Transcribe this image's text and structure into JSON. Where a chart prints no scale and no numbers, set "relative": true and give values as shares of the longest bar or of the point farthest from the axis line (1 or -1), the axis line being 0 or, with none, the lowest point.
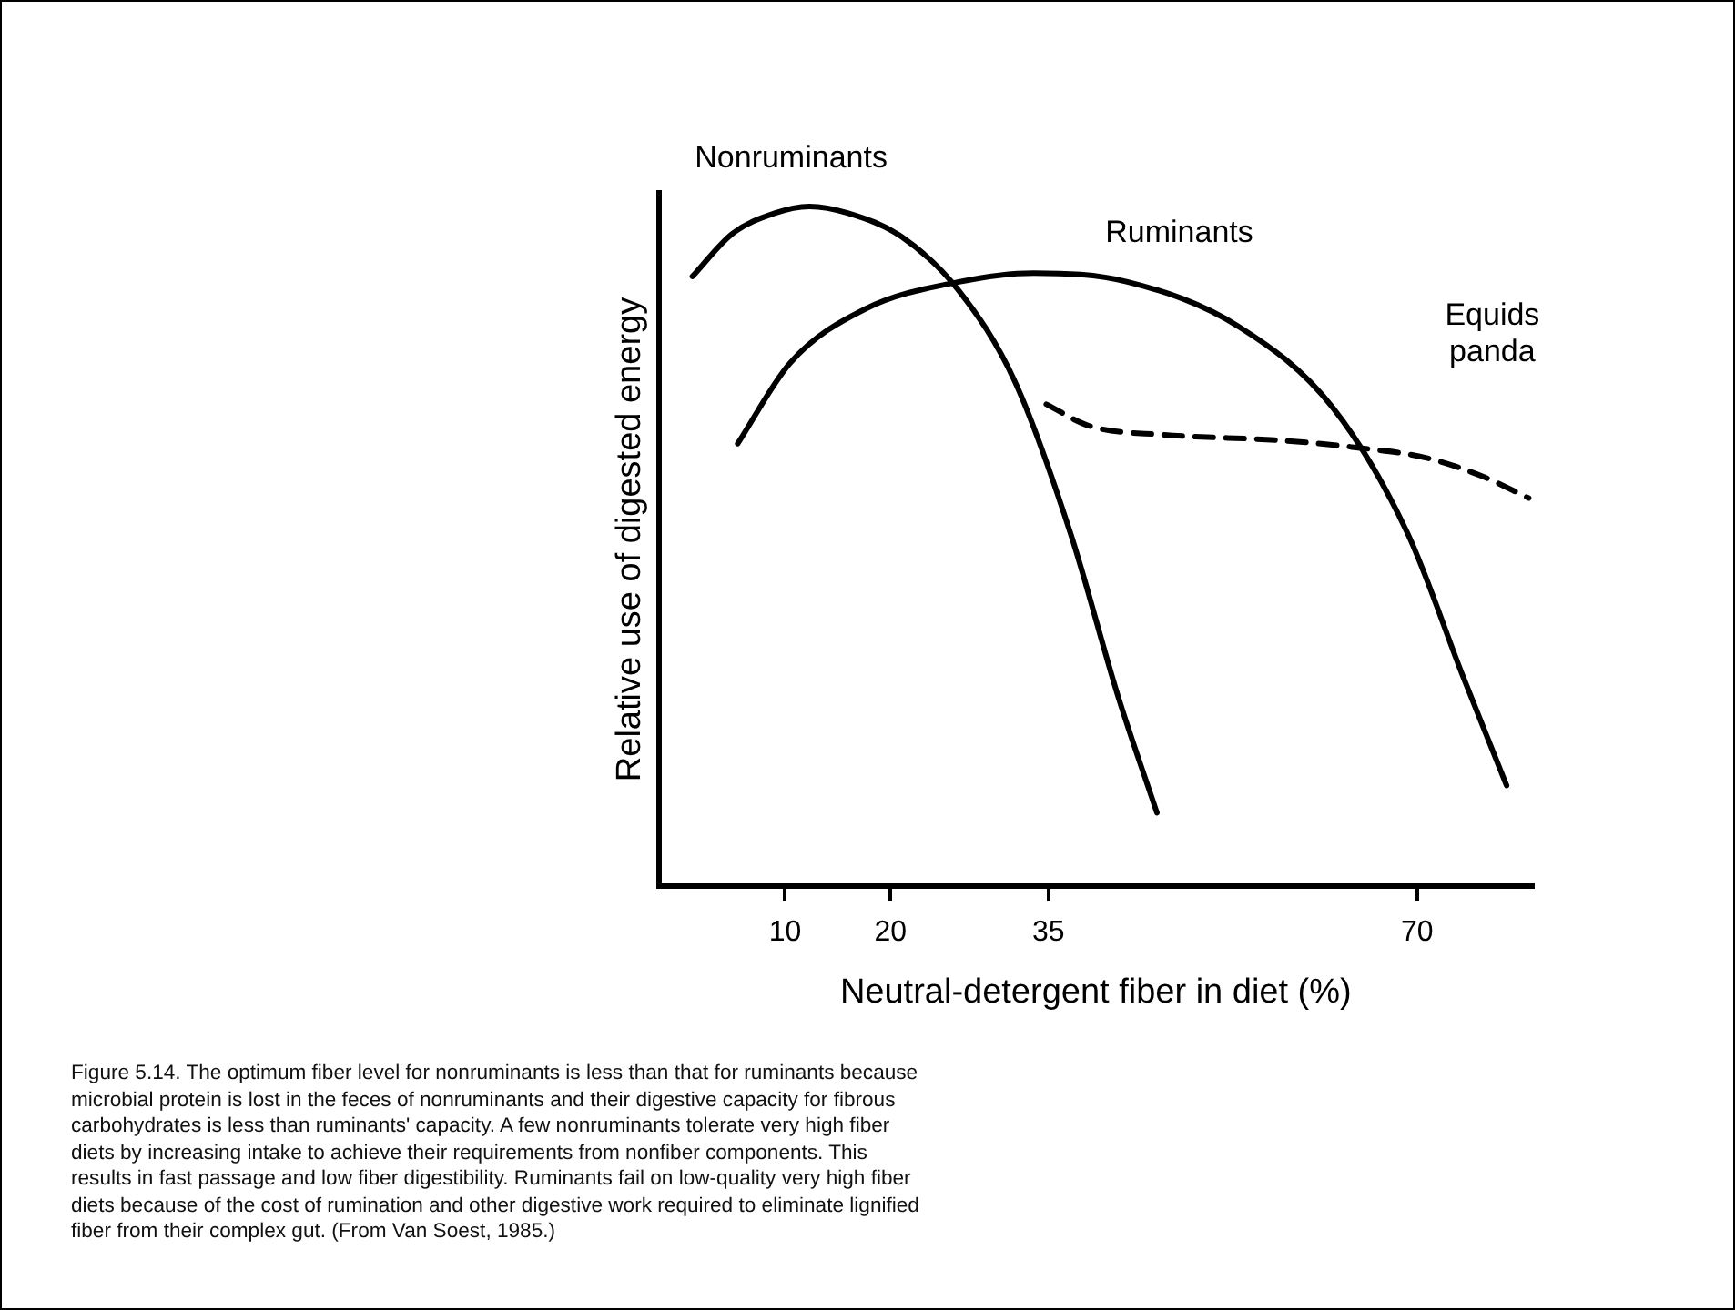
{
  "chart_data": {
    "type": "line",
    "relative": true,
    "xlabel": "Neutral-detergent fiber in diet (%)",
    "ylabel": "Relative use of digested energy",
    "xlim": [
      -2,
      81
    ],
    "xticks": [
      10,
      20,
      35,
      70
    ],
    "legend": false,
    "grid": false,
    "marker": "none",
    "series": [
      {
        "name": "Nonruminants",
        "color": "#000000",
        "line_style": "solid",
        "x": [
          1.2,
          5,
          9,
          12.3,
          16,
          21.1,
          26.5,
          31.8,
          37.1,
          41.6,
          45.3
        ],
        "values": [
          0.897,
          0.96,
          0.99,
          1.0,
          0.99,
          0.955,
          0.876,
          0.743,
          0.519,
          0.28,
          0.108
        ]
      },
      {
        "name": "Ruminants",
        "color": "#000000",
        "line_style": "solid",
        "x": [
          5.5,
          10.5,
          17.6,
          26.5,
          33.6,
          42.5,
          53.1,
          62,
          69.1,
          74.4,
          78.5
        ],
        "values": [
          0.651,
          0.77,
          0.849,
          0.889,
          0.902,
          0.889,
          0.823,
          0.704,
          0.519,
          0.307,
          0.148
        ]
      },
      {
        "name": "Equids panda",
        "color": "#000000",
        "line_style": "dashed",
        "x": [
          34.8,
          38.9,
          46,
          56.7,
          63.8,
          70.9,
          76.2,
          80.6
        ],
        "values": [
          0.709,
          0.677,
          0.664,
          0.656,
          0.646,
          0.63,
          0.603,
          0.571
        ]
      }
    ],
    "annotations": [
      "Figure 5.14. The optimum fiber level for nonruminants is less than that for ruminants because microbial protein is lost in the feces of nonruminants and their digestive capacity for fibrous carbohydrates is less than ruminants' capacity. A few nonruminants tolerate very high fiber diets by increasing intake to achieve their requirements from nonfiber components. This results in fast passage and low fiber digestibility. Ruminants fail on low-quality very high fiber diets because of the cost of rumination and other digestive work required to eliminate lignified fiber from their complex gut. (From Van Soest, 1985.)"
    ]
  }
}
